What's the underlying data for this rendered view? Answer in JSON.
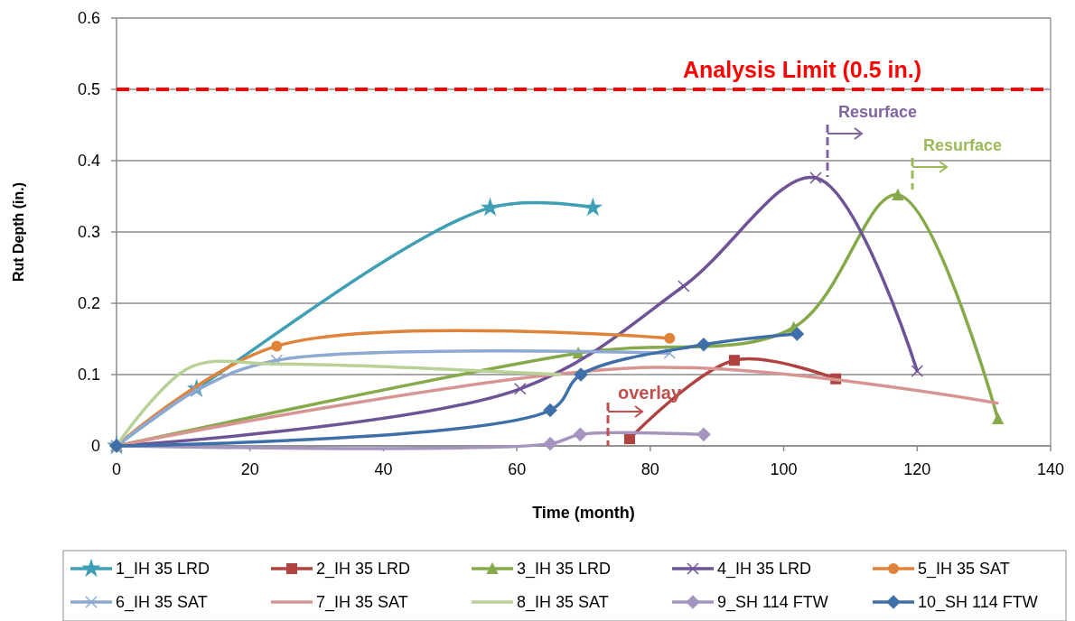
{
  "chart_data": {
    "type": "line",
    "xlabel": "Time (month)",
    "ylabel": "Rut Depth (in.)",
    "xlim": [
      0,
      140
    ],
    "xticks": [
      0,
      20,
      40,
      60,
      80,
      100,
      120,
      140
    ],
    "ylim": [
      0,
      0.6
    ],
    "yticks": [
      0,
      0.1,
      0.2,
      0.3,
      0.4,
      0.5,
      0.6
    ],
    "grid": "y",
    "legend": "bottom",
    "series": [
      {
        "name": "1_IH 35 LRD",
        "color": "#3f9fb5",
        "marker": "star",
        "x": [
          0,
          12,
          56,
          71.4
        ],
        "values": [
          0,
          0.08,
          0.334,
          0.334
        ]
      },
      {
        "name": "2_IH 35 LRD",
        "color": "#b0423f",
        "marker": "square",
        "x": [
          76.9,
          92.6,
          107.8
        ],
        "values": [
          0.01,
          0.12,
          0.094
        ]
      },
      {
        "name": "3_IH 35 LRD",
        "color": "#86a94a",
        "marker": "triangle",
        "x": [
          0,
          69.2,
          101.5,
          117.1,
          132.1
        ],
        "values": [
          0,
          0.13,
          0.166,
          0.352,
          0.038
        ]
      },
      {
        "name": "4_IH 35 LRD",
        "color": "#6e5496",
        "marker": "cross",
        "x": [
          0,
          60.5,
          85,
          104.8,
          120
        ],
        "values": [
          0,
          0.08,
          0.224,
          0.376,
          0.105
        ]
      },
      {
        "name": "5_IH 35 SAT",
        "color": "#e0833a",
        "marker": "circle",
        "x": [
          0,
          24,
          82.9
        ],
        "values": [
          0,
          0.14,
          0.151
        ]
      },
      {
        "name": "6_IH 35 SAT",
        "color": "#8ea9d1",
        "marker": "cross",
        "x": [
          0,
          12,
          24,
          82.9
        ],
        "values": [
          0,
          0.078,
          0.12,
          0.13
        ]
      },
      {
        "name": "7_IH 35 SAT",
        "color": "#d69593",
        "marker": "none",
        "x": [
          0,
          80,
          132
        ],
        "values": [
          0,
          0.11,
          0.06
        ]
      },
      {
        "name": "8_IH 35 SAT",
        "color": "#b8d197",
        "marker": "none",
        "x": [
          0,
          11,
          24,
          66.5
        ],
        "values": [
          0,
          0.11,
          0.115,
          0.1
        ]
      },
      {
        "name": "9_SH 114 FTW",
        "color": "#a594bf",
        "marker": "diamond",
        "x": [
          0,
          65,
          69.5,
          88
        ],
        "values": [
          0,
          0.003,
          0.016,
          0.016
        ]
      },
      {
        "name": "10_SH 114 FTW",
        "color": "#3f6fa8",
        "marker": "diamond",
        "x": [
          0,
          65,
          69.6,
          88,
          102
        ],
        "values": [
          0,
          0.05,
          0.1,
          0.142,
          0.157
        ]
      }
    ],
    "ref_lines": [
      {
        "axis": "y",
        "value": 0.5,
        "label": "Analysis Limit (0.5 in.)",
        "color": "#ff0000",
        "line_style": "dashed"
      }
    ],
    "annotations": [
      "overlay",
      "Resurface",
      "Resurface"
    ]
  }
}
